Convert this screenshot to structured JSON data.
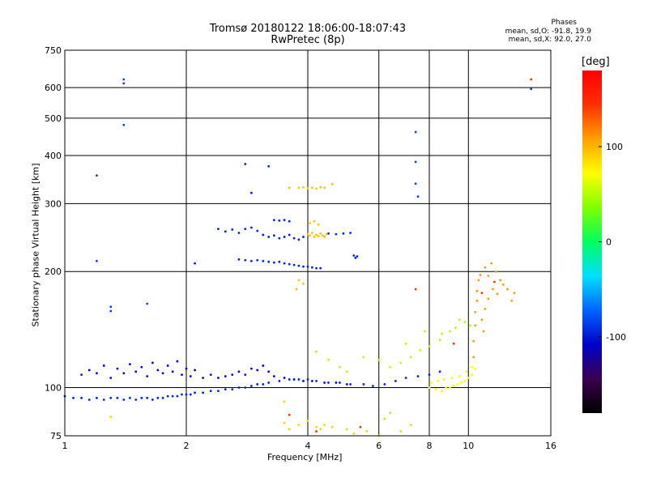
{
  "header": {
    "title_line1": "Tromsø 20180122 18:06:00-18:07:43",
    "title_line2": "RwPretec (8p)",
    "stats_title": "Phases",
    "stats_o": "mean, sd,O: -91.8, 19.9",
    "stats_x": "mean, sd,X:  92.0, 27.0"
  },
  "chart_data": {
    "type": "scatter",
    "xlabel": "Frequency [MHz]",
    "ylabel": "Stationary phase Virtual Height [km]",
    "x_scale": "log",
    "y_scale": "log",
    "xlim": [
      1,
      16
    ],
    "ylim": [
      75,
      750
    ],
    "x_ticks": [
      1,
      2,
      4,
      6,
      8,
      10,
      16
    ],
    "y_ticks": [
      75,
      100,
      200,
      300,
      400,
      500,
      600,
      750
    ],
    "grid": true,
    "colorbar": {
      "label": "[deg]",
      "range": [
        -180,
        180
      ],
      "ticks": [
        -100,
        0,
        100
      ],
      "colors": [
        "#000000",
        "#3b0050",
        "#0000c8",
        "#0064ff",
        "#00e0ff",
        "#00ff60",
        "#80ff00",
        "#ffff00",
        "#ffa000",
        "#ff3000",
        "#ff0000"
      ]
    },
    "series": [
      {
        "points": [
          [
            1.0,
            95
          ],
          [
            1.05,
            94
          ],
          [
            1.1,
            94
          ],
          [
            1.15,
            93
          ],
          [
            1.2,
            94
          ],
          [
            1.25,
            93
          ],
          [
            1.3,
            94
          ],
          [
            1.35,
            94
          ],
          [
            1.4,
            93
          ],
          [
            1.45,
            94
          ],
          [
            1.5,
            93
          ],
          [
            1.55,
            94
          ],
          [
            1.6,
            94
          ],
          [
            1.65,
            93
          ],
          [
            1.7,
            94
          ],
          [
            1.75,
            94
          ],
          [
            1.8,
            95
          ],
          [
            1.85,
            95
          ],
          [
            1.9,
            95
          ],
          [
            1.95,
            96
          ],
          [
            2.0,
            96
          ],
          [
            2.05,
            96
          ],
          [
            2.1,
            97
          ],
          [
            2.2,
            97
          ],
          [
            2.3,
            98
          ],
          [
            2.4,
            98
          ],
          [
            2.5,
            99
          ],
          [
            2.6,
            99
          ],
          [
            2.7,
            100
          ],
          [
            2.8,
            100
          ],
          [
            2.9,
            101
          ],
          [
            3.0,
            102
          ],
          [
            3.1,
            102
          ],
          [
            3.2,
            103
          ],
          [
            3.4,
            104
          ],
          [
            3.6,
            105
          ],
          [
            3.8,
            105
          ],
          [
            4.0,
            105
          ],
          [
            4.2,
            104
          ],
          [
            4.5,
            103
          ],
          [
            4.8,
            103
          ],
          [
            5.1,
            102
          ],
          [
            5.5,
            102
          ],
          [
            5.8,
            101
          ],
          [
            6.2,
            102
          ],
          [
            6.6,
            104
          ],
          [
            7.0,
            106
          ],
          [
            7.5,
            107
          ],
          [
            8.0,
            108
          ],
          [
            8.5,
            110
          ]
        ],
        "phase": -95
      },
      {
        "points": [
          [
            1.1,
            108
          ],
          [
            1.15,
            111
          ],
          [
            1.2,
            109
          ],
          [
            1.25,
            114
          ],
          [
            1.3,
            106
          ],
          [
            1.35,
            112
          ],
          [
            1.4,
            109
          ],
          [
            1.45,
            115
          ],
          [
            1.5,
            110
          ],
          [
            1.55,
            113
          ],
          [
            1.6,
            107
          ],
          [
            1.65,
            116
          ],
          [
            1.7,
            111
          ],
          [
            1.75,
            109
          ],
          [
            1.8,
            114
          ],
          [
            1.85,
            110
          ],
          [
            1.9,
            117
          ],
          [
            1.95,
            108
          ],
          [
            2.0,
            112
          ],
          [
            2.05,
            107
          ],
          [
            2.1,
            111
          ],
          [
            2.2,
            106
          ],
          [
            2.3,
            108
          ],
          [
            2.4,
            106
          ],
          [
            2.5,
            107
          ],
          [
            2.6,
            108
          ],
          [
            2.7,
            110
          ],
          [
            2.8,
            108
          ],
          [
            2.9,
            112
          ],
          [
            3.0,
            111
          ],
          [
            3.1,
            114
          ],
          [
            3.2,
            110
          ],
          [
            3.3,
            107
          ],
          [
            3.5,
            106
          ],
          [
            3.7,
            105
          ],
          [
            3.9,
            104
          ],
          [
            4.1,
            104
          ],
          [
            4.4,
            103
          ],
          [
            4.7,
            103
          ],
          [
            5.0,
            102
          ]
        ],
        "phase": -105
      },
      {
        "points": [
          [
            2.4,
            258
          ],
          [
            2.5,
            254
          ],
          [
            2.6,
            257
          ],
          [
            2.7,
            252
          ],
          [
            2.8,
            258
          ],
          [
            2.9,
            260
          ],
          [
            3.0,
            255
          ],
          [
            3.1,
            249
          ],
          [
            3.2,
            246
          ],
          [
            3.3,
            248
          ],
          [
            3.4,
            244
          ],
          [
            3.5,
            246
          ],
          [
            3.6,
            249
          ],
          [
            3.7,
            244
          ],
          [
            3.8,
            242
          ],
          [
            3.9,
            246
          ],
          [
            3.3,
            272
          ],
          [
            3.4,
            271
          ],
          [
            3.5,
            272
          ],
          [
            3.6,
            270
          ],
          [
            2.7,
            215
          ],
          [
            2.8,
            214
          ],
          [
            2.9,
            213
          ],
          [
            3.0,
            214
          ],
          [
            3.1,
            213
          ],
          [
            3.2,
            212
          ],
          [
            3.3,
            211
          ],
          [
            3.4,
            212
          ],
          [
            3.5,
            210
          ],
          [
            3.6,
            209
          ],
          [
            3.7,
            208
          ],
          [
            3.8,
            207
          ],
          [
            3.9,
            206
          ],
          [
            4.0,
            206
          ],
          [
            4.1,
            205
          ],
          [
            4.2,
            204
          ],
          [
            4.3,
            204
          ],
          [
            4.5,
            251
          ],
          [
            4.7,
            250
          ],
          [
            4.9,
            251
          ],
          [
            5.1,
            252
          ],
          [
            5.2,
            220
          ],
          [
            5.25,
            217
          ],
          [
            5.3,
            219
          ],
          [
            2.8,
            380
          ],
          [
            3.2,
            375
          ],
          [
            2.9,
            320
          ],
          [
            2.1,
            210
          ]
        ],
        "phase": -95
      },
      {
        "points": [
          [
            4.0,
            250
          ],
          [
            4.05,
            248
          ],
          [
            4.1,
            252
          ],
          [
            4.15,
            246
          ],
          [
            4.2,
            249
          ],
          [
            4.25,
            247
          ],
          [
            4.3,
            251
          ],
          [
            4.35,
            248
          ],
          [
            4.4,
            246
          ],
          [
            4.45,
            250
          ],
          [
            3.8,
            330
          ],
          [
            3.9,
            331
          ],
          [
            4.0,
            329
          ],
          [
            4.1,
            330
          ],
          [
            4.2,
            328
          ],
          [
            4.3,
            331
          ],
          [
            4.4,
            330
          ],
          [
            4.6,
            337
          ],
          [
            3.6,
            330
          ],
          [
            4.05,
            267
          ],
          [
            4.15,
            270
          ],
          [
            4.25,
            265
          ],
          [
            3.9,
            186
          ],
          [
            3.8,
            190
          ],
          [
            3.75,
            180
          ]
        ],
        "phase": 95
      },
      {
        "points": [
          [
            7.4,
            460
          ],
          [
            7.4,
            385
          ],
          [
            7.4,
            338
          ],
          [
            7.5,
            313
          ],
          [
            1.4,
            630
          ],
          [
            1.4,
            615
          ],
          [
            14.3,
            595
          ],
          [
            1.2,
            213
          ],
          [
            1.3,
            162
          ],
          [
            1.3,
            158
          ],
          [
            1.6,
            165
          ],
          [
            1.2,
            355
          ],
          [
            1.4,
            480
          ]
        ],
        "phase": -85
      },
      {
        "points": [
          [
            8.6,
            98
          ],
          [
            8.8,
            100
          ],
          [
            9.0,
            100
          ],
          [
            9.2,
            101
          ],
          [
            9.4,
            102
          ],
          [
            9.6,
            103
          ],
          [
            9.8,
            104
          ],
          [
            10.0,
            106
          ],
          [
            10.2,
            108
          ],
          [
            10.4,
            112
          ],
          [
            8.0,
            100
          ],
          [
            8.3,
            99
          ],
          [
            8.1,
            103
          ],
          [
            8.4,
            104
          ],
          [
            8.7,
            105
          ],
          [
            9.1,
            106
          ],
          [
            9.5,
            107
          ],
          [
            9.9,
            110
          ],
          [
            10.2,
            113
          ]
        ],
        "phase": 75
      },
      {
        "points": [
          [
            10.3,
            120
          ],
          [
            10.3,
            132
          ],
          [
            10.4,
            145
          ],
          [
            10.4,
            157
          ],
          [
            10.5,
            168
          ],
          [
            10.5,
            178
          ],
          [
            10.6,
            190
          ],
          [
            10.7,
            196
          ],
          [
            10.8,
            150
          ],
          [
            10.9,
            140
          ],
          [
            11.0,
            160
          ],
          [
            11.2,
            170
          ],
          [
            11.5,
            180
          ],
          [
            11.8,
            175
          ],
          [
            12.2,
            185
          ],
          [
            12.5,
            180
          ],
          [
            13.0,
            176
          ],
          [
            12.8,
            168
          ],
          [
            11.0,
            205
          ],
          [
            11.4,
            210
          ],
          [
            11.7,
            200
          ],
          [
            11.2,
            195
          ],
          [
            12.0,
            190
          ]
        ],
        "phase": 110
      },
      {
        "points": [
          [
            5.5,
            120
          ],
          [
            6.0,
            118
          ],
          [
            6.4,
            113
          ],
          [
            6.8,
            116
          ],
          [
            7.2,
            120
          ],
          [
            7.6,
            125
          ],
          [
            8.0,
            128
          ],
          [
            8.5,
            133
          ],
          [
            9.0,
            140
          ],
          [
            9.5,
            150
          ],
          [
            7.0,
            130
          ],
          [
            7.8,
            140
          ],
          [
            8.6,
            138
          ],
          [
            9.3,
            143
          ],
          [
            9.8,
            148
          ],
          [
            10.1,
            145
          ],
          [
            4.2,
            124
          ],
          [
            4.5,
            118
          ],
          [
            4.8,
            113
          ],
          [
            5.0,
            110
          ]
        ],
        "phase": 50
      },
      {
        "points": [
          [
            3.8,
            80
          ],
          [
            4.0,
            82
          ],
          [
            4.2,
            79
          ],
          [
            4.4,
            80
          ],
          [
            4.6,
            79
          ],
          [
            5.0,
            78
          ],
          [
            5.6,
            77
          ],
          [
            6.0,
            75
          ],
          [
            6.8,
            77
          ],
          [
            7.2,
            80
          ],
          [
            6.4,
            86
          ],
          [
            1.3,
            84
          ],
          [
            3.5,
            81
          ],
          [
            3.5,
            92
          ],
          [
            3.6,
            78
          ],
          [
            4.3,
            78
          ],
          [
            5.2,
            76
          ],
          [
            6.2,
            83
          ]
        ],
        "phase": 90
      },
      {
        "points": [
          [
            14.3,
            630
          ],
          [
            7.4,
            180
          ],
          [
            10.8,
            176
          ],
          [
            11.6,
            188
          ],
          [
            3.6,
            85
          ],
          [
            4.2,
            77
          ],
          [
            5.4,
            79
          ],
          [
            9.2,
            130
          ]
        ],
        "phase": 145
      }
    ]
  }
}
